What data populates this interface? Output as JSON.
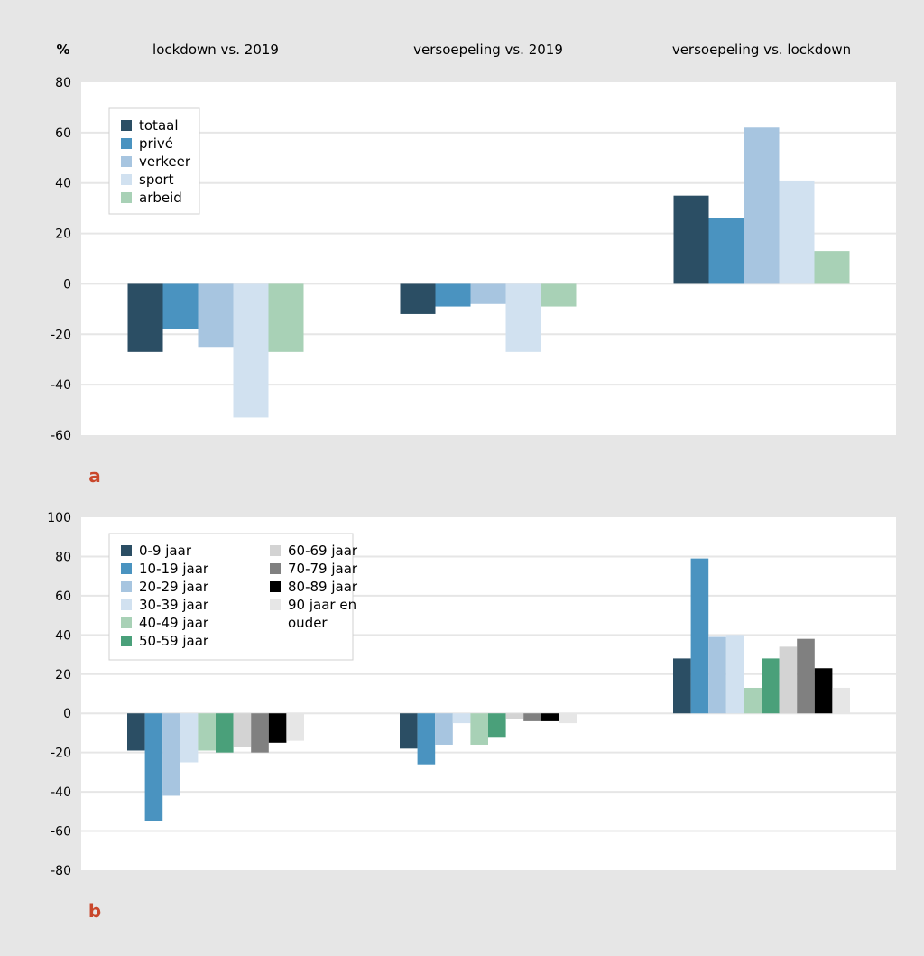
{
  "percent_label": "%",
  "group_titles": [
    "lockdown vs. 2019",
    "versoepeling vs. 2019",
    "versoepeling vs. lockdown"
  ],
  "colors": {
    "background": "#e6e6e6",
    "plot_bg": "#ffffff",
    "gridline": "#e6e6e6",
    "panel_label": "#c9472b"
  },
  "chart_data": [
    {
      "type": "bar",
      "panel_label": "a",
      "categories": [
        "lockdown vs. 2019",
        "versoepeling vs. 2019",
        "versoepeling vs. lockdown"
      ],
      "ylim": [
        -60,
        80
      ],
      "yticks": [
        80,
        60,
        40,
        20,
        0,
        -20,
        -40,
        -60
      ],
      "ylabel": "%",
      "legend_position": "top-left",
      "series": [
        {
          "name": "totaal",
          "color": "#2b4e64",
          "values": [
            -27,
            -12,
            35
          ]
        },
        {
          "name": "privé",
          "color": "#4a93c0",
          "values": [
            -18,
            -9,
            26
          ]
        },
        {
          "name": "verkeer",
          "color": "#a7c5e0",
          "values": [
            -25,
            -8,
            62
          ]
        },
        {
          "name": "sport",
          "color": "#d1e1f0",
          "values": [
            -53,
            -27,
            41
          ]
        },
        {
          "name": "arbeid",
          "color": "#a8d1b6",
          "values": [
            -27,
            -9,
            13
          ]
        }
      ]
    },
    {
      "type": "bar",
      "panel_label": "b",
      "categories": [
        "lockdown vs. 2019",
        "versoepeling vs. 2019",
        "versoepeling vs. lockdown"
      ],
      "ylim": [
        -80,
        100
      ],
      "yticks": [
        100,
        80,
        60,
        40,
        20,
        0,
        -20,
        -40,
        -60,
        -80
      ],
      "legend_position": "top-left",
      "series": [
        {
          "name": "0-9 jaar",
          "color": "#2b4e64",
          "values": [
            -19,
            -18,
            28
          ]
        },
        {
          "name": "10-19 jaar",
          "color": "#4a93c0",
          "values": [
            -55,
            -26,
            79
          ]
        },
        {
          "name": "20-29 jaar",
          "color": "#a7c5e0",
          "values": [
            -42,
            -16,
            39
          ]
        },
        {
          "name": "30-39 jaar",
          "color": "#d1e1f0",
          "values": [
            -25,
            -5,
            40
          ]
        },
        {
          "name": "40-49 jaar",
          "color": "#a8d1b6",
          "values": [
            -19,
            -16,
            13
          ]
        },
        {
          "name": "50-59 jaar",
          "color": "#4aa07a",
          "values": [
            -20,
            -12,
            28
          ]
        },
        {
          "name": "60-69 jaar",
          "color": "#d3d3d3",
          "values": [
            -17,
            -3,
            34
          ]
        },
        {
          "name": "70-79 jaar",
          "color": "#808080",
          "values": [
            -20,
            -4,
            38
          ]
        },
        {
          "name": "80-89 jaar",
          "color": "#000000",
          "values": [
            -15,
            -4,
            23
          ]
        },
        {
          "name": "90 jaar en ouder",
          "color": "#e6e6e6",
          "values": [
            -14,
            -5,
            13
          ]
        }
      ]
    }
  ]
}
